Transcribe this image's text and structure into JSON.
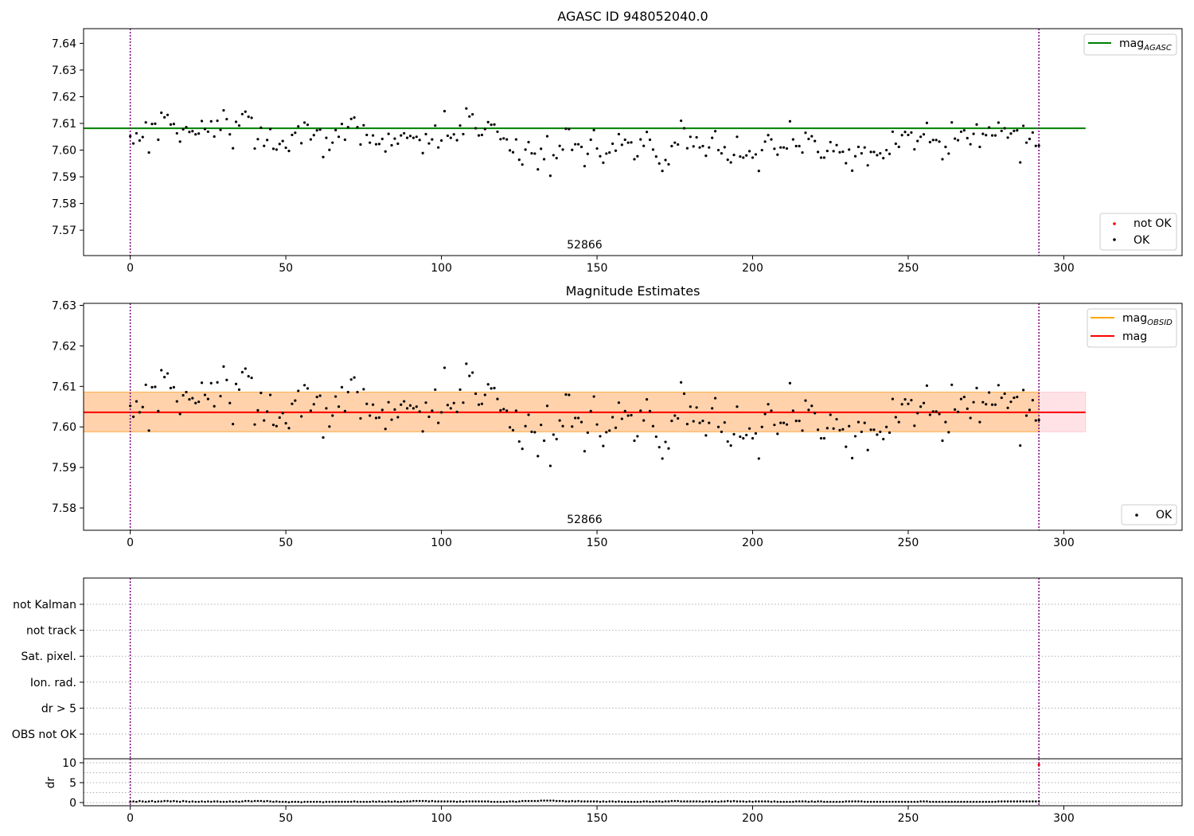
{
  "chart_data": [
    {
      "type": "scatter",
      "title": "AGASC ID 948052040.0",
      "xlim": [
        -15,
        338
      ],
      "ylim": [
        7.5605,
        7.6455
      ],
      "xticks": [
        0,
        50,
        100,
        150,
        200,
        250,
        300
      ],
      "yticks": [
        7.57,
        7.58,
        7.59,
        7.6,
        7.61,
        7.62,
        7.63,
        7.64
      ],
      "ytick_labels": [
        "7.57",
        "7.58",
        "7.59",
        "7.60",
        "7.61",
        "7.62",
        "7.63",
        "7.64"
      ],
      "vlines": [
        0,
        292
      ],
      "vline_color": "#800080",
      "segment_label": "52866",
      "segment_label_x": 146,
      "lines": [
        {
          "name": "mag_AGASC",
          "color": "#008000",
          "y": 7.6082,
          "x_range": [
            -15,
            307
          ]
        }
      ],
      "legend_upper": [
        {
          "label_main": "mag",
          "label_sub": "AGASC",
          "color": "#008000",
          "kind": "line"
        }
      ],
      "legend_lower": [
        {
          "label": "not OK",
          "color": "#ff0000",
          "kind": "dot"
        },
        {
          "label": "OK",
          "color": "#000000",
          "kind": "dot"
        }
      ],
      "series": [
        {
          "name": "OK",
          "color": "#000000",
          "x_source": "obs_index",
          "y_source": "magnitudes"
        }
      ]
    },
    {
      "type": "scatter",
      "title": "Magnitude Estimates",
      "xlim": [
        -15,
        338
      ],
      "ylim": [
        7.5745,
        7.6305
      ],
      "xticks": [
        0,
        50,
        100,
        150,
        200,
        250,
        300
      ],
      "yticks": [
        7.58,
        7.59,
        7.6,
        7.61,
        7.62,
        7.63
      ],
      "ytick_labels": [
        "7.58",
        "7.59",
        "7.60",
        "7.61",
        "7.62",
        "7.63"
      ],
      "vlines": [
        0,
        292
      ],
      "vline_color": "#800080",
      "segment_label": "52866",
      "segment_label_x": 146,
      "bands": [
        {
          "name": "mag band",
          "color": "#ffb6c1",
          "opacity": 0.4,
          "y0": 7.5988,
          "y1": 7.6086,
          "x_range": [
            -15,
            307
          ]
        },
        {
          "name": "mag_OBSID band",
          "color": "#ffa500",
          "opacity": 0.25,
          "y0": 7.5988,
          "y1": 7.6086,
          "x_range": [
            -15,
            292
          ]
        }
      ],
      "lines": [
        {
          "name": "mag_OBSID",
          "color": "#ffa500",
          "y": 7.6036,
          "x_range": [
            -15,
            292
          ]
        },
        {
          "name": "mag",
          "color": "#ff0000",
          "y": 7.6036,
          "x_range": [
            -15,
            307
          ]
        }
      ],
      "legend_upper": [
        {
          "label_main": "mag",
          "label_sub": "OBSID",
          "color": "#ffa500",
          "kind": "line"
        },
        {
          "label_main": "mag",
          "label_sub": "",
          "color": "#ff0000",
          "kind": "line"
        }
      ],
      "legend_lower": [
        {
          "label": "OK",
          "color": "#000000",
          "kind": "dot"
        }
      ],
      "series": [
        {
          "name": "OK",
          "color": "#000000",
          "x_source": "obs_index",
          "y_source": "magnitudes"
        }
      ]
    },
    {
      "type": "scatter",
      "title": "",
      "xlim": [
        -15,
        338
      ],
      "flag_labels": [
        "not Kalman",
        "not track",
        "Sat. pixel.",
        "Ion. rad.",
        "dr > 5",
        "OBS not OK"
      ],
      "flag_data_note_hidden": true,
      "vlines": [
        0,
        292
      ],
      "vline_color": "#800080",
      "xticks": [
        0,
        50,
        100,
        150,
        200,
        250,
        300
      ],
      "dr_panel": {
        "ylabel": "dr",
        "ylim": [
          -0.8,
          11
        ],
        "yticks": [
          0,
          5,
          10
        ],
        "ytick_labels": [
          "0",
          "5",
          "10"
        ],
        "minor_gridlines": [
          0,
          2.5,
          5,
          7.5,
          10
        ],
        "outlier": {
          "x": 292,
          "y": 9.5,
          "color": "#ff0000"
        },
        "series_color": "#000000"
      }
    }
  ],
  "obs_index_range": [
    0,
    292
  ],
  "magnitudes": [
    7.6052,
    7.6025,
    7.6063,
    7.6036,
    7.6049,
    7.6104,
    7.5991,
    7.6098,
    7.6099,
    7.6039,
    7.614,
    7.6123,
    7.6132,
    7.6096,
    7.6098,
    7.6063,
    7.6032,
    7.6078,
    7.6086,
    7.6068,
    7.6071,
    7.6059,
    7.6062,
    7.6109,
    7.6079,
    7.6069,
    7.6108,
    7.6051,
    7.611,
    7.6076,
    7.6149,
    7.6116,
    7.6059,
    7.6007,
    7.6106,
    7.6092,
    7.6135,
    7.6144,
    7.6125,
    7.6121,
    7.6006,
    7.6041,
    7.6084,
    7.6016,
    7.6038,
    7.6079,
    7.6005,
    7.6002,
    7.6023,
    7.6034,
    7.6009,
    7.5997,
    7.6057,
    7.6065,
    7.6089,
    7.6026,
    7.6103,
    7.6095,
    7.604,
    7.6056,
    7.6074,
    7.6077,
    7.5974,
    7.6046,
    7.6001,
    7.6028,
    7.6075,
    7.605,
    7.6098,
    7.6039,
    7.6086,
    7.6117,
    7.6122,
    7.6086,
    7.6021,
    7.6093,
    7.6057,
    7.6028,
    7.6055,
    7.6022,
    7.6023,
    7.6042,
    7.5995,
    7.6061,
    7.6018,
    7.6043,
    7.6024,
    7.6055,
    7.6063,
    7.6046,
    7.6053,
    7.6046,
    7.605,
    7.6038,
    7.5989,
    7.606,
    7.6025,
    7.604,
    7.6092,
    7.601,
    7.6036,
    7.6146,
    7.6054,
    7.6046,
    7.6059,
    7.6037,
    7.6092,
    7.606,
    7.6156,
    7.6126,
    7.6134,
    7.6082,
    7.6055,
    7.6057,
    7.6079,
    7.6105,
    7.6095,
    7.6096,
    7.6069,
    7.6041,
    7.6044,
    7.604,
    7.5999,
    7.5992,
    7.604,
    7.5964,
    7.5946,
    7.6002,
    7.603,
    7.5988,
    7.5987,
    7.5928,
    7.6005,
    7.5966,
    7.6052,
    7.5904,
    7.5981,
    7.597,
    7.6016,
    7.6002,
    7.608,
    7.6079,
    7.6001,
    7.6022,
    7.6022,
    7.6012,
    7.594,
    7.5986,
    7.6039,
    7.6075,
    7.6006,
    7.5977,
    7.5953,
    7.5987,
    7.5991,
    7.6024,
    7.5998,
    7.606,
    7.602,
    7.6039,
    7.6028,
    7.6029,
    7.5966,
    7.5977,
    7.604,
    7.6016,
    7.6068,
    7.6039,
    7.6002,
    7.5976,
    7.595,
    7.5922,
    7.5963,
    7.5947,
    7.6015,
    7.6028,
    7.6021,
    7.611,
    7.6082,
    7.6007,
    7.605,
    7.6014,
    7.6048,
    7.601,
    7.6015,
    7.5979,
    7.601,
    7.6046,
    7.6071,
    7.6,
    7.5988,
    7.6011,
    7.5964,
    7.5954,
    7.5982,
    7.605,
    7.5976,
    7.5972,
    7.598,
    7.5996,
    7.5972,
    7.5984,
    7.5922,
    7.6,
    7.6032,
    7.6056,
    7.604,
    7.6005,
    7.5983,
    7.601,
    7.601,
    7.6006,
    7.6108,
    7.604,
    7.6015,
    7.6015,
    7.5991,
    7.6065,
    7.6042,
    7.6052,
    7.6034,
    7.5993,
    7.5972,
    7.5972,
    7.5997,
    7.603,
    7.5996,
    7.6019,
    7.5992,
    7.5994,
    7.5951,
    7.6002,
    7.5923,
    7.5977,
    7.6012,
    7.5988,
    7.601,
    7.5943,
    7.5993,
    7.5993,
    7.5981,
    7.5988,
    7.597,
    7.6,
    7.5986,
    7.6069,
    7.6024,
    7.6012,
    7.6056,
    7.6068,
    7.6057,
    7.6066,
    7.6003,
    7.6034,
    7.605,
    7.6059,
    7.6102,
    7.603,
    7.6038,
    7.6038,
    7.6032,
    7.5966,
    7.6012,
    7.5987,
    7.6104,
    7.6043,
    7.6037,
    7.6069,
    7.6074,
    7.6045,
    7.6022,
    7.6061,
    7.6096,
    7.6012,
    7.6061,
    7.6056,
    7.6085,
    7.6055,
    7.6055,
    7.6103,
    7.6072,
    7.6082,
    7.6047,
    7.6062,
    7.6072,
    7.6074,
    7.5954,
    7.6091,
    7.6028,
    7.6042,
    7.6066,
    7.6016,
    7.6017
  ],
  "dr_values_note": "",
  "dr_values": [
    0.2,
    0.3,
    0.2,
    0.4,
    0.3,
    0.2,
    0.3,
    0.4,
    0.2,
    0.3,
    0.3,
    0.4,
    0.4,
    0.3,
    0.4,
    0.3,
    0.2,
    0.4,
    0.3,
    0.2,
    0.3,
    0.2,
    0.2,
    0.3,
    0.2,
    0.3,
    0.2,
    0.3,
    0.3,
    0.2,
    0.2,
    0.2,
    0.3,
    0.2,
    0.3,
    0.2,
    0.3,
    0.4,
    0.4,
    0.3,
    0.4,
    0.4,
    0.4,
    0.3,
    0.4,
    0.3,
    0.2,
    0.3,
    0.2,
    0.2,
    0.2,
    0.1,
    0.2,
    0.2,
    0.2,
    0.1,
    0.2,
    0.2,
    0.2,
    0.2,
    0.2,
    0.2,
    0.1,
    0.2,
    0.2,
    0.2,
    0.2,
    0.2,
    0.2,
    0.2,
    0.2,
    0.2,
    0.3,
    0.2,
    0.2,
    0.2,
    0.2,
    0.2,
    0.3,
    0.2,
    0.3,
    0.2,
    0.2,
    0.3,
    0.2,
    0.3,
    0.2,
    0.2,
    0.3,
    0.3,
    0.3,
    0.4,
    0.4,
    0.4,
    0.4,
    0.4,
    0.3,
    0.4,
    0.3,
    0.3,
    0.3,
    0.3,
    0.3,
    0.3,
    0.3,
    0.2,
    0.3,
    0.2,
    0.3,
    0.3,
    0.3,
    0.3,
    0.3,
    0.3,
    0.3,
    0.3,
    0.2,
    0.2,
    0.2,
    0.2,
    0.2,
    0.2,
    0.3,
    0.3,
    0.2,
    0.3,
    0.4,
    0.4,
    0.4,
    0.4,
    0.4,
    0.4,
    0.5,
    0.5,
    0.5,
    0.5,
    0.5,
    0.4,
    0.4,
    0.4,
    0.3,
    0.3,
    0.4,
    0.3,
    0.4,
    0.3,
    0.3,
    0.3,
    0.3,
    0.3,
    0.3,
    0.2,
    0.3,
    0.2,
    0.3,
    0.3,
    0.2,
    0.3,
    0.2,
    0.2,
    0.2,
    0.2,
    0.2,
    0.2,
    0.2,
    0.3,
    0.3,
    0.2,
    0.2,
    0.3,
    0.3,
    0.2,
    0.3,
    0.3,
    0.4,
    0.4,
    0.4,
    0.3,
    0.3,
    0.3,
    0.3,
    0.3,
    0.3,
    0.3,
    0.2,
    0.3,
    0.3,
    0.2,
    0.3,
    0.2,
    0.3,
    0.3,
    0.4,
    0.3,
    0.4,
    0.3,
    0.3,
    0.3,
    0.2,
    0.3,
    0.2,
    0.3,
    0.3,
    0.3,
    0.3,
    0.3,
    0.2,
    0.3,
    0.2,
    0.2,
    0.2,
    0.2,
    0.2,
    0.2,
    0.3,
    0.3,
    0.3,
    0.3,
    0.2,
    0.3,
    0.2,
    0.3,
    0.3,
    0.2,
    0.2,
    0.2,
    0.2,
    0.2,
    0.2,
    0.2,
    0.3,
    0.3,
    0.3,
    0.3,
    0.3,
    0.3,
    0.2,
    0.2,
    0.2,
    0.2,
    0.2,
    0.2,
    0.2,
    0.2,
    0.2,
    0.2,
    0.2,
    0.2,
    0.2,
    0.2,
    0.2,
    0.2,
    0.2,
    0.2,
    0.3,
    0.3,
    0.3,
    0.2,
    0.2,
    0.2,
    0.2,
    0.2,
    0.2,
    0.2,
    0.2,
    0.2,
    0.2,
    0.2,
    0.2,
    0.2,
    0.2,
    0.2,
    0.2,
    0.2,
    0.2,
    0.2,
    0.2,
    0.2,
    0.2,
    0.3,
    0.3,
    0.3,
    0.3,
    0.3,
    0.3,
    0.3,
    0.3,
    0.3,
    0.3,
    0.3,
    0.3,
    0.3,
    0.3
  ]
}
